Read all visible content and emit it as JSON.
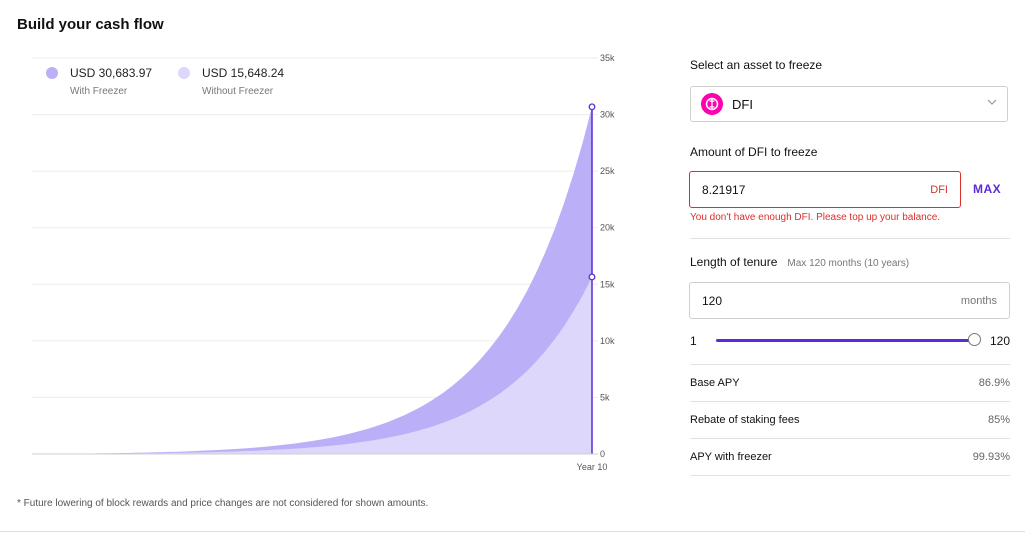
{
  "page": {
    "title": "Build your cash flow",
    "footnote": "* Future lowering of block rewards and price changes are not considered for shown amounts."
  },
  "legend": [
    {
      "value": "USD 30,683.97",
      "label": "With Freezer",
      "color": "#bbb0f7"
    },
    {
      "value": "USD 15,648.24",
      "label": "Without Freezer",
      "color": "#ddd7fb"
    }
  ],
  "chart_data": {
    "type": "area",
    "x_label_end": "Year 10",
    "ylim": [
      0,
      35000
    ],
    "y_ticks": [
      "0",
      "5k",
      "10k",
      "15k",
      "20k",
      "25k",
      "30k",
      "35k"
    ],
    "y_tick_values": [
      0,
      5000,
      10000,
      15000,
      20000,
      25000,
      30000,
      35000
    ],
    "series": [
      {
        "name": "With Freezer",
        "final_value": 30683.97,
        "color": "#bbb0f7"
      },
      {
        "name": "Without Freezer",
        "final_value": 15648.24,
        "color": "#ddd7fb"
      }
    ],
    "accent": "#5b2bd7"
  },
  "form": {
    "asset_label": "Select an asset to freeze",
    "asset_name": "DFI",
    "asset_icon": "defichain-logo-icon",
    "amount_label": "Amount of DFI to freeze",
    "amount_value": "8.21917",
    "amount_unit": "DFI",
    "max_label": "MAX",
    "error": "You don't have enough DFI. Please top up your balance.",
    "tenure_label": "Length of tenure",
    "tenure_hint": "Max 120 months (10 years)",
    "tenure_value": "120",
    "tenure_unit": "months",
    "slider_min": "1",
    "slider_max": "120",
    "slider_level": 1.0
  },
  "stats": [
    {
      "key": "Base APY",
      "value": "86.9%"
    },
    {
      "key": "Rebate of staking fees",
      "value": "85%"
    },
    {
      "key": "APY with freezer",
      "value": "99.93%"
    }
  ],
  "colors": {
    "accent": "#5b2bd7",
    "error": "#d9302c",
    "asset_brand": "#ff00af"
  }
}
